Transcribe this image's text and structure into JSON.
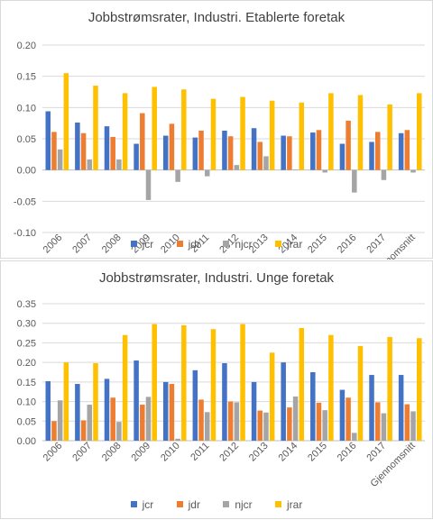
{
  "colors": {
    "jcr": "#4472c4",
    "jdr": "#ed7d31",
    "njcr": "#a5a5a5",
    "jrar": "#ffc000"
  },
  "chart_data": [
    {
      "type": "bar",
      "title": "Jobbstrømsrater, Industri. Etablerte foretak",
      "categories": [
        "2006",
        "2007",
        "2008",
        "2009",
        "2010",
        "2011",
        "2012",
        "2013",
        "2014",
        "2015",
        "2016",
        "2017",
        "Gjennomsnitt"
      ],
      "ylim": [
        -0.1,
        0.2
      ],
      "yticks": [
        "-0.10",
        "-0.05",
        "0.00",
        "0.05",
        "0.10",
        "0.15",
        "0.20"
      ],
      "grid": true,
      "legend_position": "bottom",
      "series": [
        {
          "name": "jcr",
          "color": "#4472c4",
          "values": [
            0.094,
            0.076,
            0.07,
            0.042,
            0.055,
            0.052,
            0.063,
            0.067,
            0.055,
            0.06,
            0.042,
            0.045,
            0.059
          ]
        },
        {
          "name": "jdr",
          "color": "#ed7d31",
          "values": [
            0.061,
            0.059,
            0.053,
            0.091,
            0.074,
            0.063,
            0.054,
            0.045,
            0.054,
            0.064,
            0.079,
            0.061,
            0.064
          ]
        },
        {
          "name": "njcr",
          "color": "#a5a5a5",
          "values": [
            0.033,
            0.017,
            0.017,
            -0.048,
            -0.019,
            -0.01,
            0.008,
            0.022,
            0.001,
            -0.004,
            -0.036,
            -0.016,
            -0.004
          ]
        },
        {
          "name": "jrar",
          "color": "#ffc000",
          "values": [
            0.155,
            0.135,
            0.123,
            0.133,
            0.129,
            0.114,
            0.117,
            0.111,
            0.108,
            0.123,
            0.12,
            0.105,
            0.123
          ]
        }
      ]
    },
    {
      "type": "bar",
      "title": "Jobbstrømsrater, Industri. Unge foretak",
      "categories": [
        "2006",
        "2007",
        "2008",
        "2009",
        "2010",
        "2011",
        "2012",
        "2013",
        "2014",
        "2015",
        "2016",
        "2017",
        "Gjennomsnitt"
      ],
      "ylim": [
        0,
        0.35
      ],
      "yticks": [
        "0.00",
        "0.05",
        "0.10",
        "0.15",
        "0.20",
        "0.25",
        "0.30",
        "0.35"
      ],
      "grid": true,
      "legend_position": "bottom",
      "series": [
        {
          "name": "jcr",
          "color": "#4472c4",
          "values": [
            0.152,
            0.145,
            0.158,
            0.205,
            0.15,
            0.18,
            0.198,
            0.15,
            0.2,
            0.175,
            0.13,
            0.168,
            0.168
          ]
        },
        {
          "name": "jdr",
          "color": "#ed7d31",
          "values": [
            0.05,
            0.052,
            0.11,
            0.092,
            0.145,
            0.105,
            0.1,
            0.077,
            0.085,
            0.097,
            0.11,
            0.098,
            0.093
          ]
        },
        {
          "name": "njcr",
          "color": "#a5a5a5",
          "values": [
            0.103,
            0.092,
            0.048,
            0.112,
            0.005,
            0.073,
            0.098,
            0.072,
            0.113,
            0.078,
            0.02,
            0.07,
            0.075
          ]
        },
        {
          "name": "jrar",
          "color": "#ffc000",
          "values": [
            0.2,
            0.198,
            0.27,
            0.298,
            0.295,
            0.285,
            0.298,
            0.225,
            0.288,
            0.27,
            0.242,
            0.265,
            0.262
          ]
        }
      ]
    }
  ]
}
